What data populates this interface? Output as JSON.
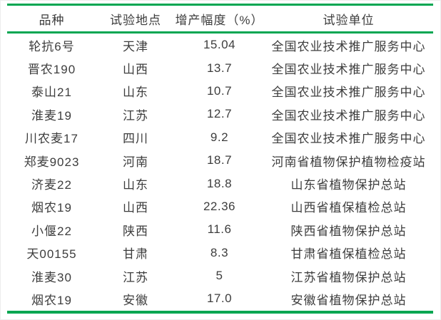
{
  "page": {
    "background": "#ffffff",
    "accent_green": "#00A651",
    "text_color": "#3d3d3d"
  },
  "chart_data": {
    "type": "table",
    "title": "",
    "columns": [
      "品种",
      "试验地点",
      "增产幅度（%）",
      "试验单位"
    ],
    "rows": [
      [
        "轮抗6号",
        "天津",
        "15.04",
        "全国农业技术推广服务中心"
      ],
      [
        "晋农190",
        "山西",
        "13.7",
        "全国农业技术推广服务中心"
      ],
      [
        "泰山21",
        "山东",
        "10.7",
        "全国农业技术推广服务中心"
      ],
      [
        "淮麦19",
        "江苏",
        "12.7",
        "全国农业技术推广服务中心"
      ],
      [
        "川农麦17",
        "四川",
        "9.2",
        "全国农业技术推广服务中心"
      ],
      [
        "郑麦9023",
        "河南",
        "18.7",
        "河南省植物保护植物检疫站"
      ],
      [
        "济麦22",
        "山东",
        "18.8",
        "山东省植物保护总站"
      ],
      [
        "烟农19",
        "山西",
        "22.36",
        "山西省植保植检总站"
      ],
      [
        "小偃22",
        "陕西",
        "11.6",
        "陕西省植物保护总站"
      ],
      [
        "天00155",
        "甘肃",
        "8.3",
        "甘肃省植保植检总站"
      ],
      [
        "淮麦30",
        "江苏",
        "5",
        "江苏省植物保护总站"
      ],
      [
        "烟农19",
        "安徽",
        "17.0",
        "安徽省植物保护总站"
      ]
    ],
    "layout": {
      "style": "three-line-table",
      "rule_color": "#00A651",
      "grid": "horizontal-rules-only"
    }
  }
}
